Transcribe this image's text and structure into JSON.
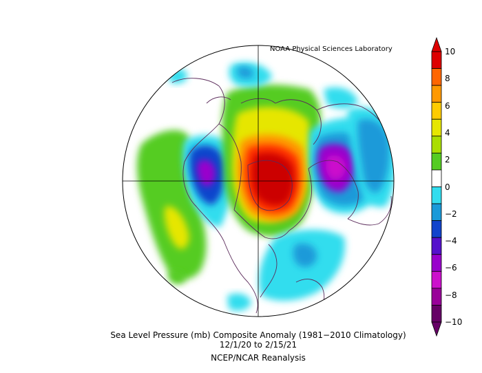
{
  "credit": "NOAA Physical Sciences Laboratory",
  "caption": {
    "line1": "Sea Level Pressure (mb) Composite Anomaly (1981−2010 Climatology)",
    "line2": "12/1/20   to 2/15/21",
    "line3": "NCEP/NCAR Reanalysis"
  },
  "colorbar": {
    "labels": [
      "10",
      "8",
      "6",
      "4",
      "2",
      "0",
      "−2",
      "−4",
      "−6",
      "−8",
      "−10"
    ],
    "colors": [
      "#dd0000",
      "#ff6600",
      "#ff9900",
      "#ffcc00",
      "#e6e600",
      "#aade00",
      "#55cc22",
      "#ffffff",
      "#33ddee",
      "#1a9ad9",
      "#1144cc",
      "#5511cc",
      "#9900cc",
      "#cc11cc",
      "#990099",
      "#660066"
    ]
  },
  "map": {
    "projection": "north polar stereographic",
    "field": "Sea Level Pressure Composite Anomaly",
    "colors": {
      "strong_positive": "#cc0000",
      "positive": "#ff6600",
      "moderate_positive": "#ffcc00",
      "weak_positive": "#55cc22",
      "weak_negative": "#33ddee",
      "moderate_negative": "#1a9ad9",
      "strong_negative": "#9900cc",
      "coastline": "#5a2a5a"
    }
  }
}
